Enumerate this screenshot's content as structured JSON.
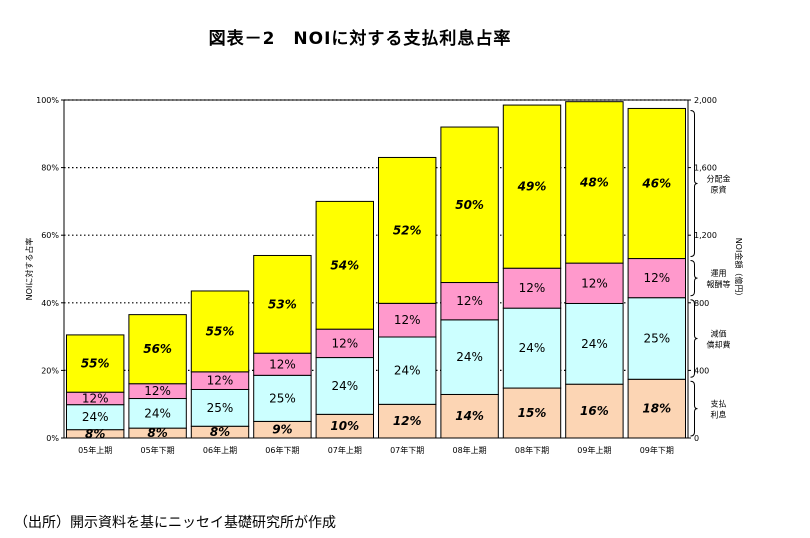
{
  "title": "図表－2　NOIに対する支払利息占率",
  "source": "（出所）開示資料を基にニッセイ基礎研究所が作成",
  "chart_data": {
    "type": "bar",
    "stacked": true,
    "categories": [
      "05年上期",
      "05年下期",
      "06年上期",
      "06年下期",
      "07年上期",
      "07年下期",
      "08年上期",
      "08年下期",
      "09年上期",
      "09年下期"
    ],
    "noi_total_oku_yen": [
      610,
      730,
      870,
      1080,
      1400,
      1660,
      1840,
      1970,
      1990,
      1950
    ],
    "series": [
      {
        "name": "支払利息",
        "color": "#fcd5b4",
        "labels": [
          "8%",
          "8%",
          "8%",
          "9%",
          "10%",
          "12%",
          "14%",
          "15%",
          "16%",
          "18%"
        ],
        "values": [
          8,
          8,
          8,
          9,
          10,
          12,
          14,
          15,
          16,
          18
        ]
      },
      {
        "name": "減価償却費",
        "color": "#ccffff",
        "labels": [
          "24%",
          "24%",
          "25%",
          "25%",
          "24%",
          "24%",
          "24%",
          "24%",
          "24%",
          "25%"
        ],
        "values": [
          24,
          24,
          25,
          25,
          24,
          24,
          24,
          24,
          24,
          25
        ]
      },
      {
        "name": "運用報酬等",
        "color": "#ff99cc",
        "labels": [
          "12%",
          "12%",
          "12%",
          "12%",
          "12%",
          "12%",
          "12%",
          "12%",
          "12%",
          "12%"
        ],
        "values": [
          12,
          12,
          12,
          12,
          12,
          12,
          12,
          12,
          12,
          12
        ]
      },
      {
        "name": "分配金原資",
        "color": "#ffff00",
        "labels": [
          "55%",
          "56%",
          "55%",
          "53%",
          "54%",
          "52%",
          "50%",
          "49%",
          "48%",
          "46%"
        ],
        "values": [
          55,
          56,
          55,
          53,
          54,
          52,
          50,
          49,
          48,
          46
        ]
      }
    ],
    "legend_labels": [
      {
        "line1": "分配金",
        "line2": "原資"
      },
      {
        "line1": "運用",
        "line2": "報酬等"
      },
      {
        "line1": "減価",
        "line2": "償却費"
      },
      {
        "line1": "支払",
        "line2": "利息"
      }
    ],
    "y_left": {
      "label": "NOIに対する占率",
      "ticks": [
        "0%",
        "20%",
        "40%",
        "60%",
        "80%",
        "100%"
      ],
      "min": 0,
      "max": 100
    },
    "y_right": {
      "label": "NOI金額（億円）",
      "ticks": [
        "0",
        "400",
        "800",
        "1,200",
        "1,600",
        "2,000"
      ],
      "min": 0,
      "max": 2000
    },
    "grid": "dotted horizontal",
    "legend_placement": "right"
  }
}
